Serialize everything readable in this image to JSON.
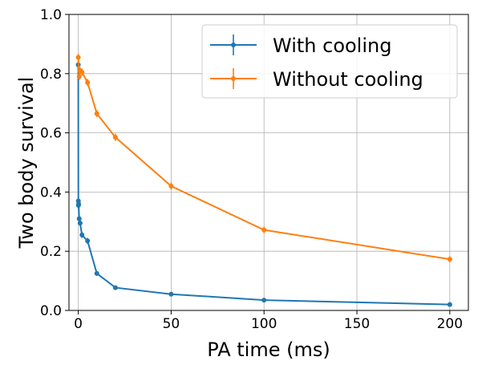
{
  "chart_data": {
    "type": "line",
    "title": "",
    "xlabel": "PA time (ms)",
    "ylabel": "Two body survival",
    "xlim": [
      -5,
      210
    ],
    "ylim": [
      0,
      1.0
    ],
    "xticks": [
      0,
      50,
      100,
      150,
      200
    ],
    "yticks": [
      0.0,
      0.2,
      0.4,
      0.6,
      0.8,
      1.0
    ],
    "xtick_labels": [
      "0",
      "50",
      "100",
      "150",
      "200"
    ],
    "ytick_labels": [
      "0.0",
      "0.2",
      "0.4",
      "0.6",
      "0.8",
      "1.0"
    ],
    "grid": true,
    "legend_position": "top-right",
    "series": [
      {
        "name": "With cooling",
        "color": "#1f77b4",
        "x": [
          0,
          0.05,
          0.1,
          0.2,
          0.5,
          1,
          2,
          5,
          10,
          20,
          50,
          100,
          200
        ],
        "y": [
          0.83,
          0.37,
          0.355,
          0.36,
          0.31,
          0.295,
          0.255,
          0.235,
          0.125,
          0.077,
          0.055,
          0.035,
          0.02
        ],
        "yerr": [
          0.012,
          0.012,
          0.012,
          0.012,
          0.01,
          0.01,
          0.01,
          0.01,
          0.008,
          0.006,
          0.005,
          0.004,
          0.003
        ]
      },
      {
        "name": "Without cooling",
        "color": "#ff7f0e",
        "x": [
          0,
          0.5,
          1,
          2,
          5,
          10,
          20,
          50,
          100,
          200
        ],
        "y": [
          0.855,
          0.79,
          0.81,
          0.805,
          0.77,
          0.665,
          0.585,
          0.42,
          0.272,
          0.173
        ],
        "yerr": [
          0.012,
          0.012,
          0.012,
          0.012,
          0.012,
          0.012,
          0.012,
          0.012,
          0.011,
          0.01
        ]
      }
    ]
  }
}
